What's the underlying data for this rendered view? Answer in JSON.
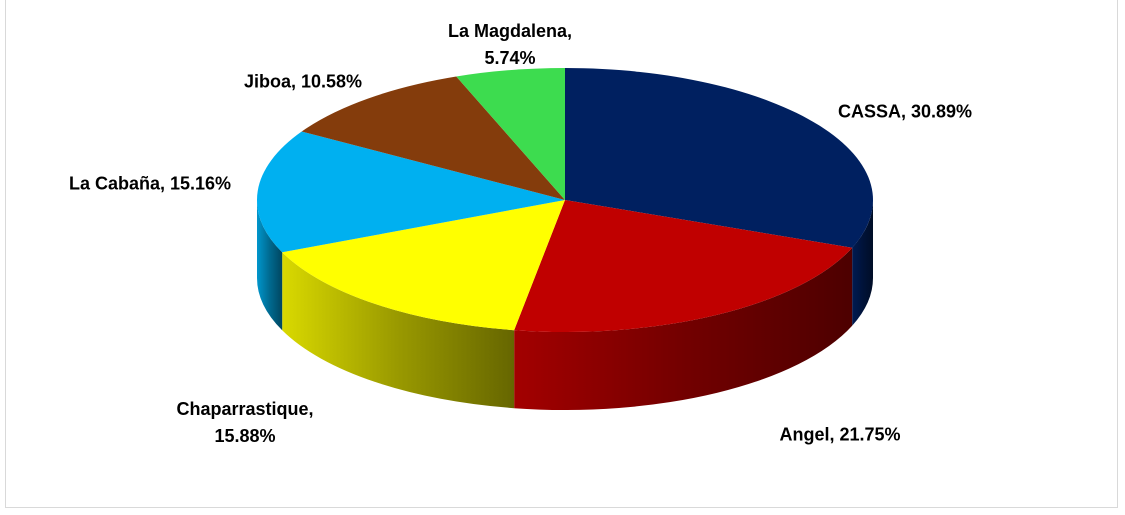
{
  "chart_data": {
    "type": "pie",
    "categories": [
      "CASSA",
      "Angel",
      "Chaparrastique",
      "La Cabaña",
      "Jiboa",
      "La Magdalena"
    ],
    "values": [
      30.89,
      21.75,
      15.88,
      15.16,
      10.58,
      5.74
    ],
    "value_labels": [
      "CASSA, 30.89%",
      "Angel, 21.75%",
      "Chaparrastique, 15.88%",
      "La Cabaña, 15.16%",
      "Jiboa, 10.58%",
      "La Magdalena, 5.74%"
    ],
    "colors": [
      "#002060",
      "#c00000",
      "#ffff00",
      "#00b0f0",
      "#843c0c",
      "#3ddc4f"
    ]
  }
}
